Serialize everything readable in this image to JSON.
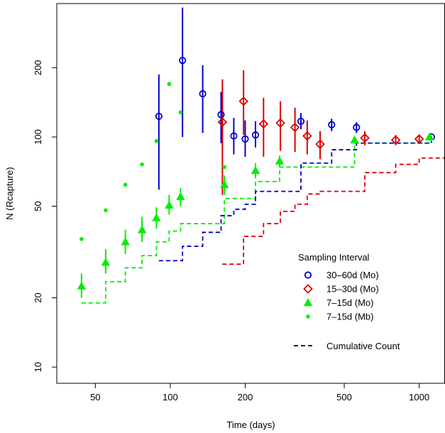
{
  "chart_data": {
    "type": "scatter",
    "xlabel": "Time (days)",
    "ylabel": "N (Rcapture)",
    "xscale": "log",
    "yscale": "log",
    "xlim": [
      35,
      1270
    ],
    "ylim": [
      8.5,
      380
    ],
    "x_ticks": [
      50,
      100,
      200,
      500,
      1000
    ],
    "x_tick_labels": [
      "50",
      "100",
      "200",
      "500",
      "1000"
    ],
    "y_ticks": [
      10,
      20,
      50,
      100,
      200
    ],
    "y_tick_labels": [
      "10",
      "20",
      "50",
      "100",
      "200"
    ],
    "grid": false,
    "legend_position": "bottom-right",
    "legend_title": "Sampling Interval",
    "series": [
      {
        "name": "30–60d (Mo)",
        "color": "#0000CC",
        "marker": "circle",
        "points": [
          {
            "x": 90,
            "y": 123,
            "lo": 59,
            "hi": 187
          },
          {
            "x": 112,
            "y": 215,
            "lo": 100,
            "hi": 365
          },
          {
            "x": 135,
            "y": 154,
            "lo": 104,
            "hi": 205
          },
          {
            "x": 160,
            "y": 125,
            "lo": 94,
            "hi": 157
          },
          {
            "x": 180,
            "y": 101,
            "lo": 84,
            "hi": 121
          },
          {
            "x": 200,
            "y": 98,
            "lo": 82,
            "hi": 118
          },
          {
            "x": 220,
            "y": 102,
            "lo": 90,
            "hi": 117
          },
          {
            "x": 335,
            "y": 117,
            "lo": 108,
            "hi": 127
          },
          {
            "x": 445,
            "y": 113,
            "lo": 106,
            "hi": 120
          },
          {
            "x": 560,
            "y": 110,
            "lo": 104,
            "hi": 116
          },
          {
            "x": 1120,
            "y": 100,
            "lo": 99,
            "hi": 101
          }
        ]
      },
      {
        "name": "15–30d (Mo)",
        "color": "#DD0000",
        "marker": "diamond",
        "points": [
          {
            "x": 162,
            "y": 116,
            "lo": 56,
            "hi": 178
          },
          {
            "x": 197,
            "y": 143,
            "lo": 102,
            "hi": 195
          },
          {
            "x": 237,
            "y": 114,
            "lo": 82,
            "hi": 148
          },
          {
            "x": 277,
            "y": 115,
            "lo": 87,
            "hi": 143
          },
          {
            "x": 317,
            "y": 110,
            "lo": 86,
            "hi": 134
          },
          {
            "x": 355,
            "y": 101,
            "lo": 84,
            "hi": 118
          },
          {
            "x": 400,
            "y": 93,
            "lo": 80,
            "hi": 106
          },
          {
            "x": 605,
            "y": 99,
            "lo": 92,
            "hi": 106
          },
          {
            "x": 805,
            "y": 97,
            "lo": 92,
            "hi": 102
          },
          {
            "x": 1000,
            "y": 98,
            "lo": 94,
            "hi": 102
          }
        ]
      },
      {
        "name": "7–15d (Mo)",
        "color": "#00EE00",
        "marker": "triangle",
        "points": [
          {
            "x": 44,
            "y": 22.5,
            "lo": 20,
            "hi": 25.5
          },
          {
            "x": 55,
            "y": 28.5,
            "lo": 25.5,
            "hi": 32.5
          },
          {
            "x": 66,
            "y": 35,
            "lo": 31,
            "hi": 39.5
          },
          {
            "x": 77,
            "y": 39.5,
            "lo": 35,
            "hi": 45
          },
          {
            "x": 88,
            "y": 44.5,
            "lo": 40,
            "hi": 49.5
          },
          {
            "x": 99,
            "y": 50.5,
            "lo": 46,
            "hi": 56
          },
          {
            "x": 110,
            "y": 55,
            "lo": 50,
            "hi": 60
          },
          {
            "x": 165,
            "y": 62,
            "lo": 56,
            "hi": 68
          },
          {
            "x": 220,
            "y": 71.5,
            "lo": 66,
            "hi": 77
          },
          {
            "x": 275,
            "y": 78.5,
            "lo": 74,
            "hi": 83
          },
          {
            "x": 550,
            "y": 97,
            "lo": 94,
            "hi": 100
          },
          {
            "x": 1100,
            "y": 100,
            "lo": 99,
            "hi": 101
          }
        ]
      },
      {
        "name": "7–15d (Mb)",
        "color": "#00EE00",
        "marker": "dot",
        "points": [
          {
            "x": 44,
            "y": 36
          },
          {
            "x": 55,
            "y": 48
          },
          {
            "x": 66,
            "y": 62
          },
          {
            "x": 77,
            "y": 76
          },
          {
            "x": 88,
            "y": 96
          },
          {
            "x": 99,
            "y": 170
          },
          {
            "x": 110,
            "y": 128
          },
          {
            "x": 165,
            "y": 74
          }
        ]
      }
    ],
    "cumulative_count": {
      "name": "Cumulative Count",
      "series": [
        {
          "color": "#00EE00",
          "steps": [
            [
              44,
              19
            ],
            [
              55,
              23.5
            ],
            [
              66,
              27
            ],
            [
              77,
              30.5
            ],
            [
              88,
              35
            ],
            [
              99,
              39
            ],
            [
              110,
              42
            ],
            [
              165,
              45
            ],
            [
              165,
              54
            ],
            [
              220,
              64
            ],
            [
              275,
              74
            ],
            [
              550,
              94
            ],
            [
              1100,
              96
            ],
            [
              1120,
              96
            ]
          ]
        },
        {
          "color": "#0000CC",
          "steps": [
            [
              90,
              29
            ],
            [
              112,
              33.5
            ],
            [
              135,
              38.5
            ],
            [
              160,
              45.5
            ],
            [
              180,
              48.5
            ],
            [
              200,
              51
            ],
            [
              220,
              58
            ],
            [
              335,
              77
            ],
            [
              445,
              88
            ],
            [
              560,
              94
            ],
            [
              1120,
              96
            ]
          ]
        },
        {
          "color": "#DD0000",
          "steps": [
            [
              162,
              28
            ],
            [
              197,
              37
            ],
            [
              237,
              42
            ],
            [
              277,
              47.5
            ],
            [
              317,
              51
            ],
            [
              355,
              56.5
            ],
            [
              400,
              58
            ],
            [
              605,
              70
            ],
            [
              805,
              76
            ],
            [
              1000,
              81
            ],
            [
              1270,
              88
            ]
          ]
        }
      ]
    }
  }
}
